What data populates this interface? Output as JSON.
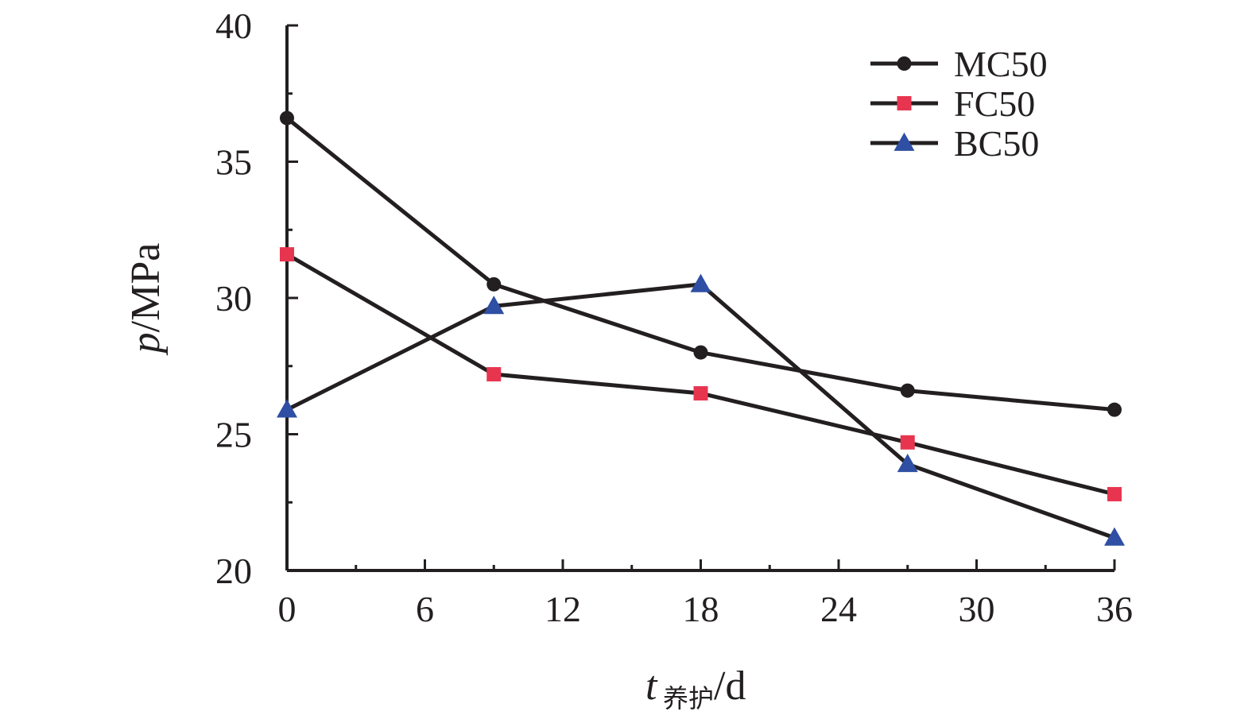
{
  "chart_data": {
    "type": "line",
    "x": [
      0,
      9,
      18,
      27,
      36
    ],
    "series": [
      {
        "name": "MC50",
        "marker": "circle",
        "color": "#231f20",
        "values": [
          36.6,
          30.5,
          28.0,
          26.6,
          25.9
        ]
      },
      {
        "name": "FC50",
        "marker": "square",
        "color": "#e8354f",
        "values": [
          31.6,
          27.2,
          26.5,
          24.7,
          22.8
        ]
      },
      {
        "name": "BC50",
        "marker": "triangle",
        "color": "#2e4fa3",
        "values": [
          25.9,
          29.7,
          30.5,
          23.9,
          21.2
        ]
      }
    ],
    "xlim": [
      0,
      36
    ],
    "ylim": [
      20,
      40
    ],
    "xticks": [
      0,
      6,
      12,
      18,
      24,
      30,
      36
    ],
    "yticks": [
      20,
      25,
      30,
      35,
      40
    ],
    "xlabel": {
      "var": "t",
      "sub": "养护",
      "unit": "/d"
    },
    "ylabel": {
      "var": "p",
      "unit": "/MPa"
    },
    "legend_position": "top-right",
    "grid": false
  }
}
